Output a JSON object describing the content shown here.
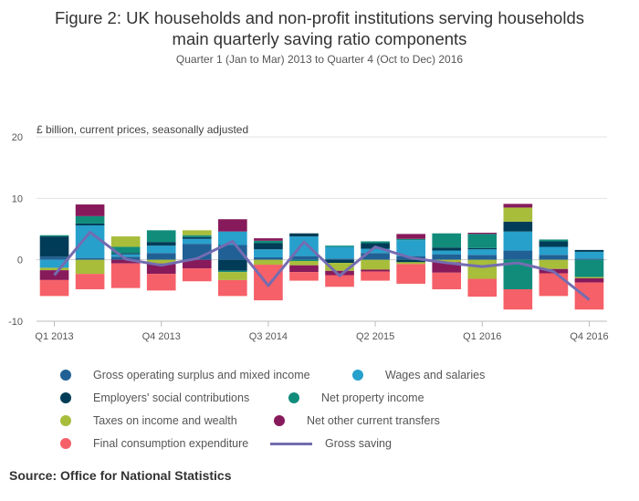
{
  "chart_data": {
    "type": "bar",
    "stacked": true,
    "title_lines": [
      "Figure 2: UK households and non-profit institutions serving households",
      "main quarterly saving ratio components"
    ],
    "subtitle": "Quarter 1 (Jan to Mar) 2013 to Quarter 4 (Oct to Dec) 2016",
    "ylabel": "£ billion, current prices, seasonally adjusted",
    "ylim": [
      -10,
      20
    ],
    "yticks": [
      -10,
      0,
      10,
      20
    ],
    "grid": true,
    "categories": [
      "Q1 2013",
      "Q2 2013",
      "Q3 2013",
      "Q4 2013",
      "Q1 2014",
      "Q2 2014",
      "Q3 2014",
      "Q4 2014",
      "Q1 2015",
      "Q2 2015",
      "Q3 2015",
      "Q4 2015",
      "Q1 2016",
      "Q2 2016",
      "Q3 2016",
      "Q4 2016"
    ],
    "xtick_labels": [
      {
        "index": 0,
        "label": "Q1 2013"
      },
      {
        "index": 3,
        "label": "Q4 2013"
      },
      {
        "index": 6,
        "label": "Q3 2014"
      },
      {
        "index": 9,
        "label": "Q2 2015"
      },
      {
        "index": 12,
        "label": "Q1 2016"
      },
      {
        "index": 15,
        "label": "Q4 2016"
      }
    ],
    "series": [
      {
        "name": "Gross operating surplus and mixed income",
        "color": "#206095",
        "values": [
          0.5,
          0.3,
          0.5,
          1.1,
          2.6,
          2.4,
          0.4,
          0.6,
          0.2,
          1.1,
          0.6,
          0.9,
          0.8,
          1.5,
          0.8,
          0.2
        ]
      },
      {
        "name": "Wages and salaries",
        "color": "#27a0cc",
        "values": [
          -1.3,
          5.3,
          0.4,
          1.2,
          0.8,
          2.2,
          1.3,
          3.2,
          1.9,
          0.7,
          2.6,
          0.6,
          0.9,
          3.1,
          1.3,
          1.1
        ]
      },
      {
        "name": "Employers' social contributions",
        "color": "#003c57",
        "values": [
          3.3,
          0.3,
          0.2,
          0.6,
          0.3,
          -1.8,
          1.0,
          0.5,
          -0.5,
          0.9,
          -0.4,
          0.5,
          0.2,
          1.6,
          0.9,
          0.3
        ]
      },
      {
        "name": "Net property income",
        "color": "#118c7b",
        "values": [
          0.2,
          1.2,
          1.0,
          1.9,
          0.3,
          -0.2,
          0.4,
          -0.2,
          0.2,
          0.3,
          0.2,
          2.3,
          2.3,
          -4.8,
          0.3,
          -2.8
        ]
      },
      {
        "name": "Taxes on income and wealth",
        "color": "#a8bd3a",
        "values": [
          -0.4,
          -2.3,
          1.7,
          -0.6,
          0.8,
          -1.3,
          -0.8,
          -0.7,
          -1.3,
          -1.6,
          -0.3,
          -0.4,
          -3.1,
          2.3,
          -1.5,
          -0.2
        ]
      },
      {
        "name": "Net other current transfers",
        "color": "#871a5b",
        "values": [
          -1.6,
          1.9,
          -0.6,
          -1.7,
          -1.4,
          2.0,
          0.4,
          -1.1,
          -0.7,
          -0.3,
          0.8,
          -1.7,
          0.2,
          0.6,
          -0.7,
          -0.7
        ]
      },
      {
        "name": "Final consumption expenditure",
        "color": "#f66068",
        "values": [
          -2.6,
          -2.5,
          -4.0,
          -2.7,
          -2.1,
          -2.6,
          -5.8,
          -1.4,
          -1.9,
          -1.5,
          -3.2,
          -2.7,
          -2.9,
          -3.3,
          -3.7,
          -4.4
        ]
      }
    ],
    "line": {
      "name": "Gross saving",
      "color": "#746cb1",
      "values": [
        -2.5,
        4.5,
        0.1,
        -0.9,
        0.2,
        3.0,
        -4.2,
        2.9,
        -2.6,
        2.1,
        0.3,
        -0.5,
        -1.1,
        -0.5,
        -1.9,
        -6.5
      ]
    }
  },
  "source": "Source: Office for National Statistics"
}
